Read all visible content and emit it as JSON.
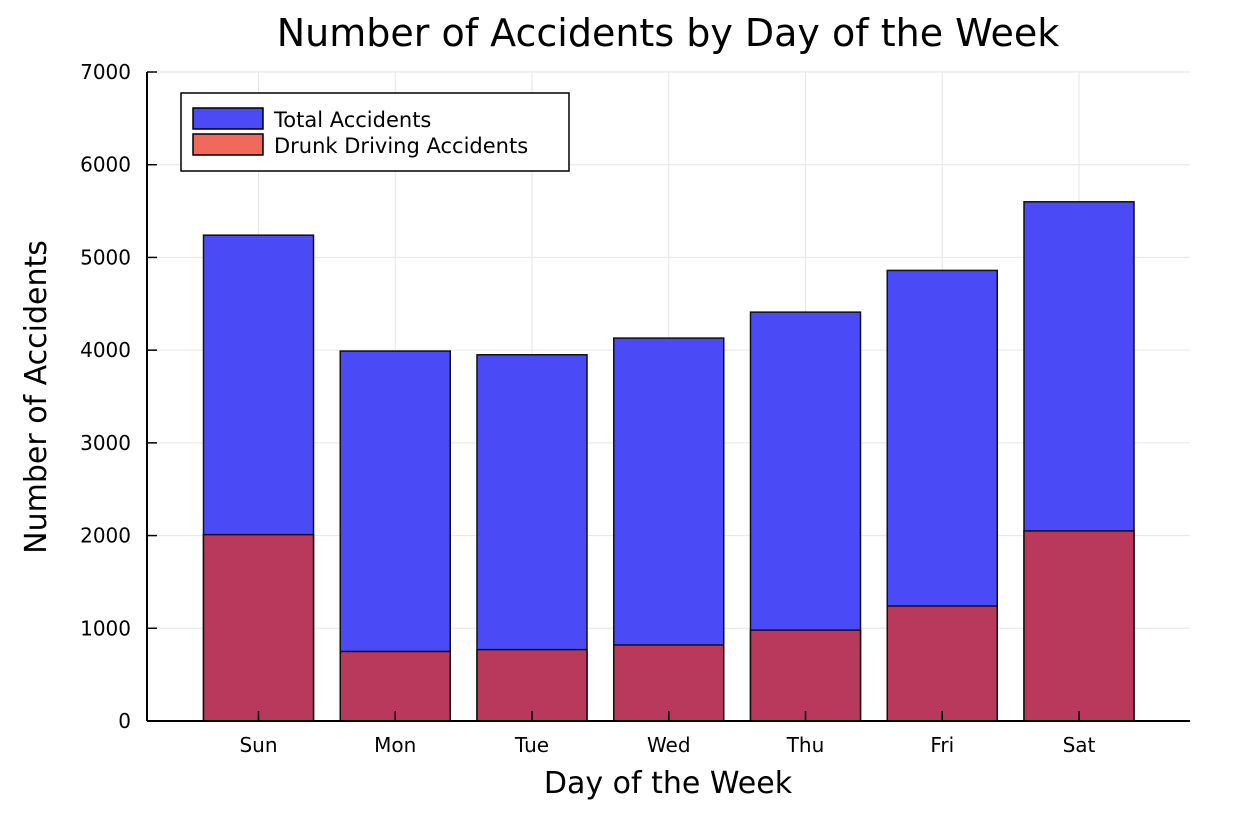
{
  "chart_data": {
    "type": "bar",
    "title": "Number of Accidents by Day of the Week",
    "xlabel": "Day of the Week",
    "ylabel": "Number of Accidents",
    "categories": [
      "Sun",
      "Mon",
      "Tue",
      "Wed",
      "Thu",
      "Fri",
      "Sat"
    ],
    "series": [
      {
        "name": "Total Accidents",
        "values": [
          5240,
          3990,
          3950,
          4130,
          4410,
          4860,
          5600
        ],
        "color": "#4a4af7"
      },
      {
        "name": "Drunk Driving Accidents",
        "values": [
          2010,
          750,
          770,
          820,
          980,
          1240,
          2050
        ],
        "color": "#b8395c",
        "legend_color": "#ef6a5a"
      }
    ],
    "ylim": [
      0,
      7000
    ],
    "yticks": [
      0,
      1000,
      2000,
      3000,
      4000,
      5000,
      6000,
      7000
    ],
    "grid": true,
    "legend_position": "top-left",
    "overlay": true
  }
}
